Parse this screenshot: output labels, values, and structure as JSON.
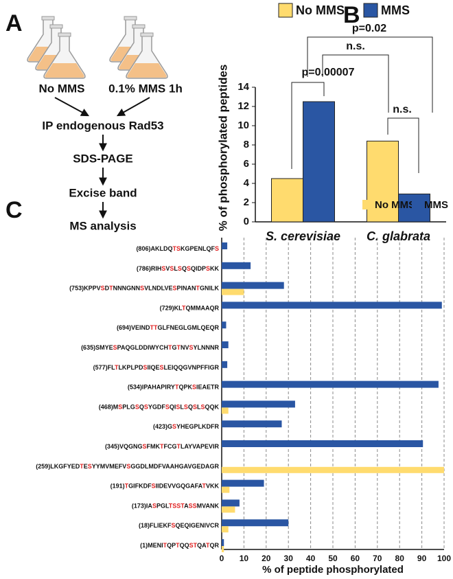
{
  "panel_a": {
    "label": "A",
    "conditions": [
      "No MMS",
      "0.1% MMS 1h"
    ],
    "steps": [
      "IP endogenous Rad53",
      "SDS-PAGE",
      "Excise band",
      "MS analysis"
    ]
  },
  "chart_data": [
    {
      "type": "bar",
      "panel": "B",
      "ylabel": "% of phosphorylated peptides",
      "categories": [
        "S. cerevisiae",
        "C. glabrata"
      ],
      "series": [
        {
          "name": "No MMS",
          "color": "#ffdb6e",
          "values": [
            4.5,
            8.4
          ]
        },
        {
          "name": "MMS",
          "color": "#2a56a3",
          "values": [
            12.5,
            2.9
          ]
        }
      ],
      "ylim": [
        0,
        14
      ],
      "yticks": [
        0,
        2,
        4,
        6,
        8,
        10,
        12,
        14
      ],
      "annotations": [
        "p=0.00007",
        "n.s.",
        "n.s.",
        "p=0.02"
      ]
    },
    {
      "type": "barh",
      "panel": "C",
      "xlabel": "% of peptide phosphorylated",
      "categories": [
        [
          "(806)AKLDQ",
          "TS",
          "KGPENLQF",
          "S"
        ],
        [
          "(786)RIH",
          "S",
          "V",
          "S",
          "L",
          "S",
          "Q",
          "S",
          "QIDP",
          "S",
          "KK"
        ],
        [
          "(753)KPPV",
          "S",
          "D",
          "T",
          "NNNGNN",
          "S",
          "VLNDLVE",
          "S",
          "PINAN",
          "T",
          "GNILK"
        ],
        [
          "(729)KL",
          "T",
          "QMMAAQR"
        ],
        [
          "(694)VEIND",
          "TT",
          "GLFNEGLGMLQEQR"
        ],
        [
          "(635)SMYE",
          "S",
          "PAQGLDDIWYCH",
          "T",
          "G",
          "T",
          "NV",
          "S",
          "YLNNNR"
        ],
        [
          "(577)FL",
          "T",
          "LKPLPD",
          "S",
          "IIQE",
          "S",
          "LEIQQGVNPFFIGR"
        ],
        [
          "(534)IPAHAPIRY",
          "T",
          "QPK",
          "S",
          "IEAETR"
        ],
        [
          "(468)M",
          "S",
          "PLG",
          "S",
          "Q",
          "S",
          "YGDF",
          "S",
          "QI",
          "S",
          "L",
          "S",
          "Q",
          "S",
          "L",
          "S",
          "QQK"
        ],
        [
          "(423)G",
          "S",
          "YHEGPLKDFR"
        ],
        [
          "(345)VQGNG",
          "S",
          "FMK",
          "T",
          "FCG",
          "T",
          "LAYVAPEVIR"
        ],
        [
          "(259)LKGFYED",
          "T",
          "E",
          "S",
          "YYMVMEFV",
          "S",
          "GGDLMDFVAAHGAVGEDAGR"
        ],
        [
          "(191)",
          "T",
          "GIFKDF",
          "S",
          "IIDEVVGQGAFA",
          "T",
          "VKK"
        ],
        [
          "(173)IA",
          "S",
          "PGL",
          "TSST",
          "A",
          "SS",
          "MVANK"
        ],
        [
          "(18)FLIEKF",
          "S",
          "QEQIGENIVCR"
        ],
        [
          "(1)MENI",
          "T",
          "QP",
          "T",
          "QQ",
          "ST",
          "QA",
          "T",
          "QR"
        ]
      ],
      "series": [
        {
          "name": "No MMS",
          "color": "#ffdb6e",
          "values": [
            0,
            0,
            10,
            0,
            0,
            0,
            0,
            0,
            3,
            0,
            0,
            100,
            3.5,
            6,
            3,
            1
          ]
        },
        {
          "name": "MMS",
          "color": "#2a56a3",
          "values": [
            2.5,
            13,
            28,
            99,
            2,
            3,
            2.5,
            97.5,
            33,
            27,
            90.5,
            0,
            19,
            8,
            30,
            1
          ]
        }
      ],
      "xlim": [
        0,
        100
      ],
      "xticks": [
        0,
        10,
        20,
        30,
        40,
        50,
        60,
        70,
        80,
        90,
        100
      ],
      "grid": true,
      "highlight_color": "#e02020"
    }
  ]
}
